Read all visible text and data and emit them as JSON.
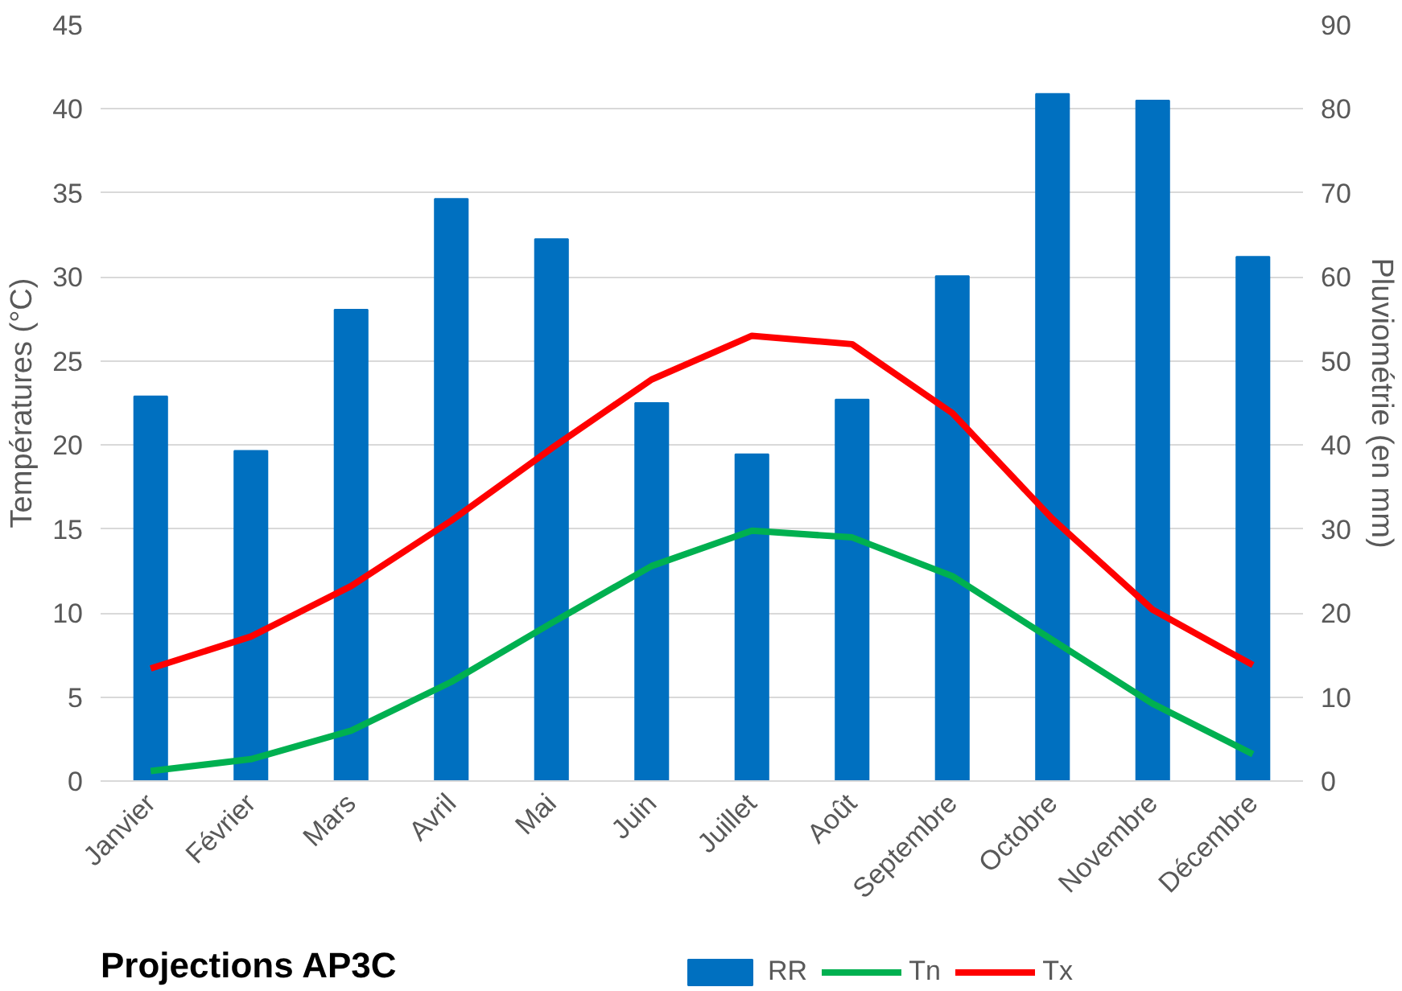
{
  "chart_data": {
    "type": "bar",
    "title": "Projections AP3C",
    "ylabel": "Températures (°C)",
    "y2label": "Pluviométrie (en mm)",
    "categories": [
      "Janvier",
      "Février",
      "Mars",
      "Avril",
      "Mai",
      "Juin",
      "Juillet",
      "Août",
      "Septembre",
      "Octobre",
      "Novembre",
      "Décembre"
    ],
    "series": [
      {
        "name": "RR",
        "axis": "y2",
        "color": "#0070c0",
        "values": [
          45.8,
          39.3,
          56.1,
          69.3,
          64.5,
          45.0,
          38.9,
          45.4,
          60.1,
          81.8,
          81.0,
          62.4
        ]
      },
      {
        "name": "Tn",
        "type": "line",
        "color": "#00b050",
        "values": [
          0.6,
          1.3,
          3.0,
          5.9,
          9.4,
          12.8,
          14.9,
          14.5,
          12.2,
          8.4,
          4.6,
          1.6
        ]
      },
      {
        "name": "Tx",
        "type": "line",
        "color": "#ff0000",
        "values": [
          6.7,
          8.6,
          11.6,
          15.5,
          19.8,
          23.9,
          26.5,
          26.0,
          21.9,
          15.6,
          10.2,
          6.9
        ]
      }
    ],
    "ylim": [
      0,
      45
    ],
    "yticks": [
      0,
      5,
      10,
      15,
      20,
      25,
      30,
      35,
      40,
      45
    ],
    "y2lim": [
      0,
      90
    ],
    "y2ticks": [
      0,
      10,
      20,
      30,
      40,
      50,
      60,
      70,
      80,
      90
    ],
    "grid": "y",
    "legend": "bottom"
  }
}
